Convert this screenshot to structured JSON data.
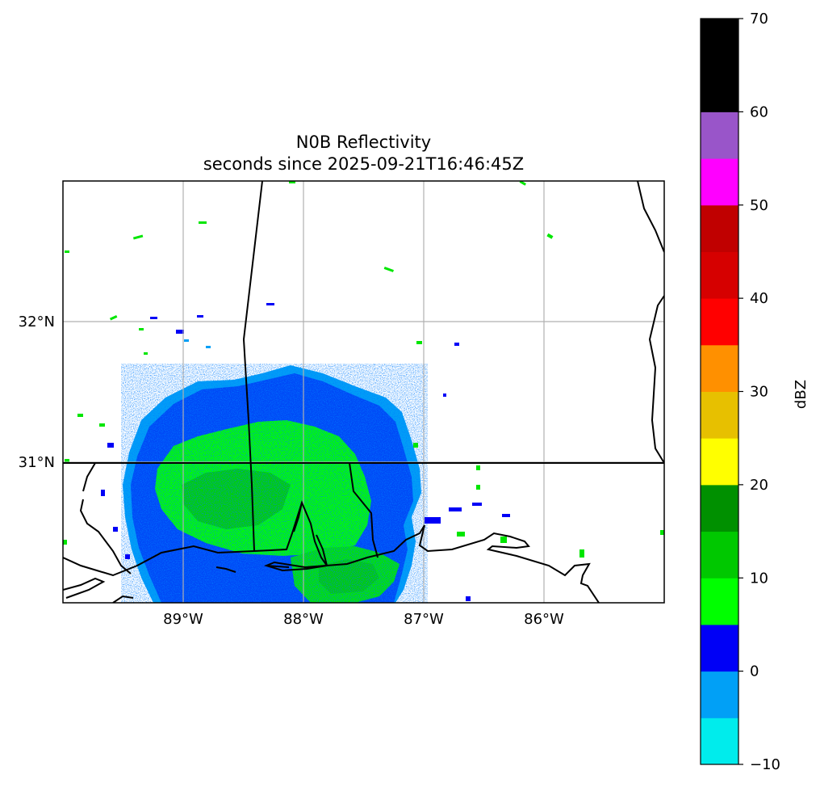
{
  "title": "N0B Reflectivity",
  "subtitle": "seconds since 2025-09-21T16:46:45Z",
  "map": {
    "lon_range": [
      -90.0,
      -85.0
    ],
    "lat_range": [
      30.0,
      33.0
    ],
    "lon_ticks": [
      {
        "value": -89,
        "label": "89°W"
      },
      {
        "value": -88,
        "label": "88°W"
      },
      {
        "value": -87,
        "label": "87°W"
      },
      {
        "value": -86,
        "label": "86°W"
      }
    ],
    "lat_ticks": [
      {
        "value": 32,
        "label": "32°N"
      },
      {
        "value": 31,
        "label": "31°N"
      }
    ],
    "grid": true,
    "radar_center": {
      "lon": -88.0,
      "lat": 30.85
    }
  },
  "colorbar": {
    "label": "dBZ",
    "range": [
      -10,
      70
    ],
    "ticks": [
      {
        "value": 70,
        "label": "70"
      },
      {
        "value": 60,
        "label": "60"
      },
      {
        "value": 50,
        "label": "50"
      },
      {
        "value": 40,
        "label": "40"
      },
      {
        "value": 30,
        "label": "30"
      },
      {
        "value": 20,
        "label": "20"
      },
      {
        "value": 10,
        "label": "10"
      },
      {
        "value": 0,
        "label": "0"
      },
      {
        "value": -10,
        "label": "−10"
      }
    ],
    "bins": [
      {
        "from": -10,
        "to": -5,
        "color": "#00ecec"
      },
      {
        "from": -5,
        "to": 0,
        "color": "#01a0f6"
      },
      {
        "from": 0,
        "to": 5,
        "color": "#0000f6"
      },
      {
        "from": 5,
        "to": 10,
        "color": "#00ff00"
      },
      {
        "from": 10,
        "to": 15,
        "color": "#00c800"
      },
      {
        "from": 15,
        "to": 20,
        "color": "#009000"
      },
      {
        "from": 20,
        "to": 25,
        "color": "#ffff00"
      },
      {
        "from": 25,
        "to": 30,
        "color": "#e7c000"
      },
      {
        "from": 30,
        "to": 35,
        "color": "#ff9000"
      },
      {
        "from": 35,
        "to": 40,
        "color": "#ff0000"
      },
      {
        "from": 40,
        "to": 45,
        "color": "#d60000"
      },
      {
        "from": 45,
        "to": 50,
        "color": "#c00000"
      },
      {
        "from": 50,
        "to": 55,
        "color": "#ff00ff"
      },
      {
        "from": 55,
        "to": 60,
        "color": "#9955c9"
      },
      {
        "from": 60,
        "to": 70,
        "color": "#000000"
      }
    ]
  }
}
